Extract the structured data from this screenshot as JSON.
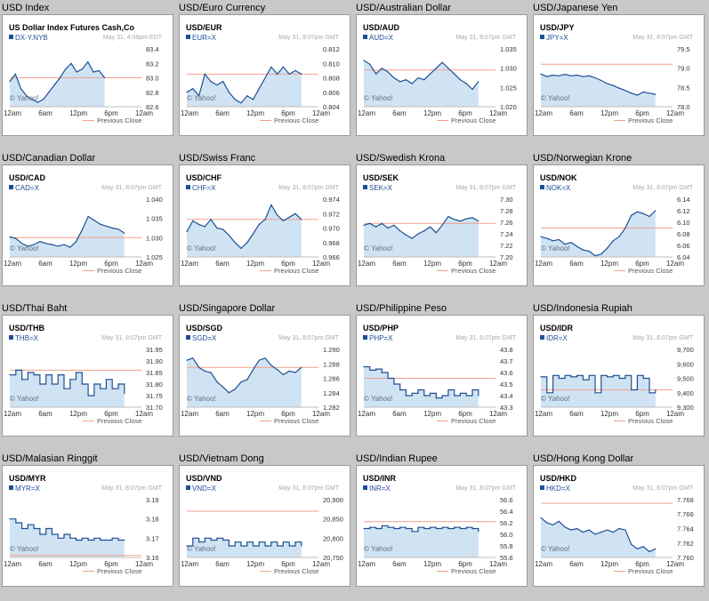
{
  "footer": {
    "yahoo": "© Yahoo!",
    "legend": "Previous Close"
  },
  "x_labels": [
    "12am",
    "6am",
    "12pm",
    "6pm",
    "12am"
  ],
  "colors": {
    "line": "#1d4f94",
    "fill": "#cfe3f3",
    "prev_close": "#f0a08a",
    "text_accent": "#1d4f94"
  },
  "chart_data": [
    {
      "type": "area",
      "panel_title": "USD Index",
      "symbol": "US Dollar Index Futures Cash,Co",
      "ticker": "DX-Y.NYB",
      "timestamp": "May 31, 4:08pm EDT",
      "ylim": [
        82.6,
        83.4
      ],
      "yticks": [
        82.6,
        82.8,
        83.0,
        83.2,
        83.4
      ],
      "prev_close": 83.0,
      "end": 0.72,
      "style": "smooth",
      "values": [
        82.95,
        83.05,
        82.85,
        82.75,
        82.7,
        82.66,
        82.7,
        82.8,
        82.9,
        83.0,
        83.12,
        83.2,
        83.08,
        83.12,
        83.22,
        83.08,
        83.1,
        83.0
      ]
    },
    {
      "type": "area",
      "panel_title": "USD/Euro Currency",
      "symbol": "USD/EUR",
      "ticker": "EUR=X",
      "timestamp": "May 31, 8:07pm GMT",
      "ylim": [
        0.804,
        0.812
      ],
      "yticks": [
        0.804,
        0.806,
        0.808,
        0.81,
        0.812
      ],
      "prev_close": 0.8085,
      "end": 0.87,
      "style": "smooth",
      "values": [
        0.806,
        0.8065,
        0.8055,
        0.8085,
        0.8075,
        0.807,
        0.8075,
        0.806,
        0.805,
        0.8045,
        0.8055,
        0.805,
        0.8065,
        0.808,
        0.8095,
        0.8085,
        0.8095,
        0.8085,
        0.809,
        0.8085
      ]
    },
    {
      "type": "area",
      "panel_title": "USD/Australian Dollar",
      "symbol": "USD/AUD",
      "ticker": "AUD=X",
      "timestamp": "May 31, 8:07pm GMT",
      "ylim": [
        1.02,
        1.035
      ],
      "yticks": [
        1.02,
        1.025,
        1.03,
        1.035
      ],
      "prev_close": 1.0295,
      "end": 0.87,
      "style": "smooth",
      "values": [
        1.032,
        1.031,
        1.0285,
        1.03,
        1.029,
        1.0275,
        1.0265,
        1.027,
        1.026,
        1.0275,
        1.027,
        1.0285,
        1.03,
        1.0315,
        1.03,
        1.0285,
        1.027,
        1.026,
        1.0245,
        1.0265
      ]
    },
    {
      "type": "area",
      "panel_title": "USD/Japanese Yen",
      "symbol": "USD/JPY",
      "ticker": "JPY=X",
      "timestamp": "May 31, 8:07pm GMT",
      "ylim": [
        78.0,
        79.5
      ],
      "yticks": [
        78.0,
        78.5,
        79.0,
        79.5
      ],
      "prev_close": 79.1,
      "end": 0.87,
      "style": "smooth",
      "values": [
        78.85,
        78.78,
        78.82,
        78.8,
        78.84,
        78.8,
        78.82,
        78.78,
        78.8,
        78.75,
        78.68,
        78.6,
        78.55,
        78.48,
        78.42,
        78.35,
        78.3,
        78.38,
        78.35,
        78.32
      ]
    },
    {
      "type": "area",
      "panel_title": "USD/Canadian Dollar",
      "symbol": "USD/CAD",
      "ticker": "CAD=X",
      "timestamp": "May 31, 8:07pm GMT",
      "ylim": [
        1.025,
        1.04
      ],
      "yticks": [
        1.025,
        1.03,
        1.035,
        1.04
      ],
      "prev_close": 1.03,
      "end": 0.87,
      "style": "smooth",
      "values": [
        1.0302,
        1.0298,
        1.0285,
        1.0278,
        1.0282,
        1.029,
        1.0285,
        1.0282,
        1.0278,
        1.0282,
        1.0275,
        1.029,
        1.032,
        1.0355,
        1.0345,
        1.0335,
        1.033,
        1.0325,
        1.0322,
        1.0312
      ]
    },
    {
      "type": "area",
      "panel_title": "USD/Swiss Franc",
      "symbol": "USD/CHF",
      "ticker": "CHF=X",
      "timestamp": "May 31, 8:07pm GMT",
      "ylim": [
        0.966,
        0.974
      ],
      "yticks": [
        0.966,
        0.968,
        0.97,
        0.972,
        0.974
      ],
      "prev_close": 0.9712,
      "end": 0.87,
      "style": "smooth",
      "values": [
        0.9695,
        0.971,
        0.9705,
        0.9702,
        0.9712,
        0.97,
        0.9698,
        0.969,
        0.968,
        0.9672,
        0.968,
        0.9692,
        0.9705,
        0.9712,
        0.9732,
        0.9718,
        0.971,
        0.9715,
        0.972,
        0.9712
      ]
    },
    {
      "type": "area",
      "panel_title": "USD/Swedish Krona",
      "symbol": "USD/SEK",
      "ticker": "SEK=X",
      "timestamp": "May 31, 8:07pm GMT",
      "ylim": [
        7.2,
        7.3
      ],
      "yticks": [
        7.2,
        7.22,
        7.24,
        7.26,
        7.28,
        7.3
      ],
      "prev_close": 7.258,
      "end": 0.87,
      "style": "smooth",
      "values": [
        7.255,
        7.258,
        7.252,
        7.258,
        7.25,
        7.255,
        7.245,
        7.238,
        7.232,
        7.24,
        7.245,
        7.252,
        7.242,
        7.255,
        7.27,
        7.265,
        7.262,
        7.266,
        7.268,
        7.262
      ]
    },
    {
      "type": "area",
      "panel_title": "USD/Norwegian Krone",
      "symbol": "USD/NOK",
      "ticker": "NOK=X",
      "timestamp": "May 31, 8:07pm GMT",
      "ylim": [
        6.04,
        6.14
      ],
      "yticks": [
        6.04,
        6.06,
        6.08,
        6.1,
        6.12,
        6.14
      ],
      "prev_close": 6.09,
      "end": 0.87,
      "style": "smooth",
      "values": [
        6.075,
        6.072,
        6.068,
        6.07,
        6.062,
        6.065,
        6.058,
        6.052,
        6.05,
        6.042,
        6.045,
        6.055,
        6.068,
        6.075,
        6.09,
        6.112,
        6.118,
        6.115,
        6.11,
        6.12
      ]
    },
    {
      "type": "area",
      "panel_title": "USD/Thai Baht",
      "symbol": "USD/THB",
      "ticker": "THB=X",
      "timestamp": "May 31, 8:07pm GMT",
      "ylim": [
        31.7,
        31.95
      ],
      "yticks": [
        31.7,
        31.75,
        31.8,
        31.85,
        31.9,
        31.95
      ],
      "prev_close": 31.86,
      "end": 0.87,
      "style": "step",
      "values": [
        31.84,
        31.86,
        31.82,
        31.85,
        31.84,
        31.8,
        31.84,
        31.8,
        31.84,
        31.78,
        31.82,
        31.85,
        31.8,
        31.75,
        31.8,
        31.78,
        31.82,
        31.78,
        31.8,
        31.76
      ]
    },
    {
      "type": "area",
      "panel_title": "USD/Singapore Dollar",
      "symbol": "USD/SGD",
      "ticker": "SGD=X",
      "timestamp": "May 31, 8:07pm GMT",
      "ylim": [
        1.282,
        1.29
      ],
      "yticks": [
        1.282,
        1.284,
        1.286,
        1.288,
        1.29
      ],
      "prev_close": 1.2875,
      "end": 0.87,
      "style": "smooth",
      "values": [
        1.2885,
        1.2888,
        1.2875,
        1.287,
        1.2868,
        1.2855,
        1.2848,
        1.284,
        1.2845,
        1.2855,
        1.2858,
        1.2872,
        1.2885,
        1.2888,
        1.2878,
        1.2872,
        1.2865,
        1.287,
        1.2868,
        1.2875
      ]
    },
    {
      "type": "area",
      "panel_title": "USD/Philippine Peso",
      "symbol": "USD/PHP",
      "ticker": "PHP=X",
      "timestamp": "May 31, 8:07pm GMT",
      "ylim": [
        43.3,
        43.8
      ],
      "yticks": [
        43.3,
        43.4,
        43.5,
        43.6,
        43.7,
        43.8
      ],
      "prev_close": 43.55,
      "end": 0.87,
      "style": "step",
      "values": [
        43.65,
        43.62,
        43.63,
        43.6,
        43.55,
        43.5,
        43.45,
        43.4,
        43.42,
        43.45,
        43.4,
        43.42,
        43.38,
        43.4,
        43.45,
        43.4,
        43.42,
        43.4,
        43.45,
        43.4
      ]
    },
    {
      "type": "area",
      "panel_title": "USD/Indonesia Rupiah",
      "symbol": "USD/IDR",
      "ticker": "IDR=X",
      "timestamp": "May 31, 8:07pm GMT",
      "ylim": [
        9300,
        9700
      ],
      "yticks": [
        9300,
        9400,
        9500,
        9600,
        9700
      ],
      "prev_close": 9420,
      "end": 0.87,
      "style": "step",
      "values": [
        9510,
        9400,
        9520,
        9500,
        9520,
        9510,
        9520,
        9490,
        9520,
        9400,
        9520,
        9510,
        9520,
        9500,
        9520,
        9420,
        9520,
        9500,
        9400,
        9420
      ]
    },
    {
      "type": "area",
      "panel_title": "USD/Malasian Ringgit",
      "symbol": "USD/MYR",
      "ticker": "MYR=X",
      "timestamp": "May 31, 8:07pm GMT",
      "ylim": [
        3.16,
        3.19
      ],
      "yticks": [
        3.16,
        3.17,
        3.18,
        3.19
      ],
      "prev_close": 3.161,
      "end": 0.87,
      "style": "step",
      "values": [
        3.18,
        3.178,
        3.175,
        3.177,
        3.175,
        3.172,
        3.175,
        3.172,
        3.17,
        3.172,
        3.17,
        3.169,
        3.17,
        3.169,
        3.17,
        3.169,
        3.169,
        3.17,
        3.169,
        3.169
      ]
    },
    {
      "type": "area",
      "panel_title": "USD/Vietnam Dong",
      "symbol": "USD/VND",
      "ticker": "VND=X",
      "timestamp": "May 31, 8:07pm GMT",
      "ylim": [
        20750,
        20900
      ],
      "yticks": [
        20750,
        20800,
        20850,
        20900
      ],
      "prev_close": 20870,
      "end": 0.87,
      "style": "step",
      "values": [
        20780,
        20800,
        20790,
        20800,
        20795,
        20800,
        20795,
        20780,
        20790,
        20780,
        20790,
        20780,
        20790,
        20780,
        20790,
        20780,
        20790,
        20780,
        20790,
        20780
      ]
    },
    {
      "type": "area",
      "panel_title": "USD/Indian Rupee",
      "symbol": "USD/INR",
      "ticker": "INR=X",
      "timestamp": "May 31, 8:07pm GMT",
      "ylim": [
        55.6,
        56.6
      ],
      "yticks": [
        55.6,
        55.8,
        56.0,
        56.2,
        56.4,
        56.6
      ],
      "prev_close": 56.22,
      "end": 0.87,
      "style": "step",
      "values": [
        56.1,
        56.12,
        56.1,
        56.15,
        56.12,
        56.1,
        56.12,
        56.1,
        56.05,
        56.12,
        56.1,
        56.12,
        56.1,
        56.12,
        56.1,
        56.12,
        56.1,
        56.12,
        56.1,
        56.05
      ]
    },
    {
      "type": "area",
      "panel_title": "USD/Hong Kong Dollar",
      "symbol": "USD/HKD",
      "ticker": "HKD=X",
      "timestamp": "May 31, 8:07pm GMT",
      "ylim": [
        7.76,
        7.768
      ],
      "yticks": [
        7.76,
        7.762,
        7.764,
        7.766,
        7.768
      ],
      "prev_close": 7.7675,
      "end": 0.87,
      "style": "smooth",
      "values": [
        7.7655,
        7.7648,
        7.7645,
        7.765,
        7.7642,
        7.7638,
        7.764,
        7.7635,
        7.7638,
        7.7632,
        7.7635,
        7.7638,
        7.7635,
        7.764,
        7.7638,
        7.7618,
        7.7612,
        7.7615,
        7.7608,
        7.7612
      ]
    }
  ]
}
